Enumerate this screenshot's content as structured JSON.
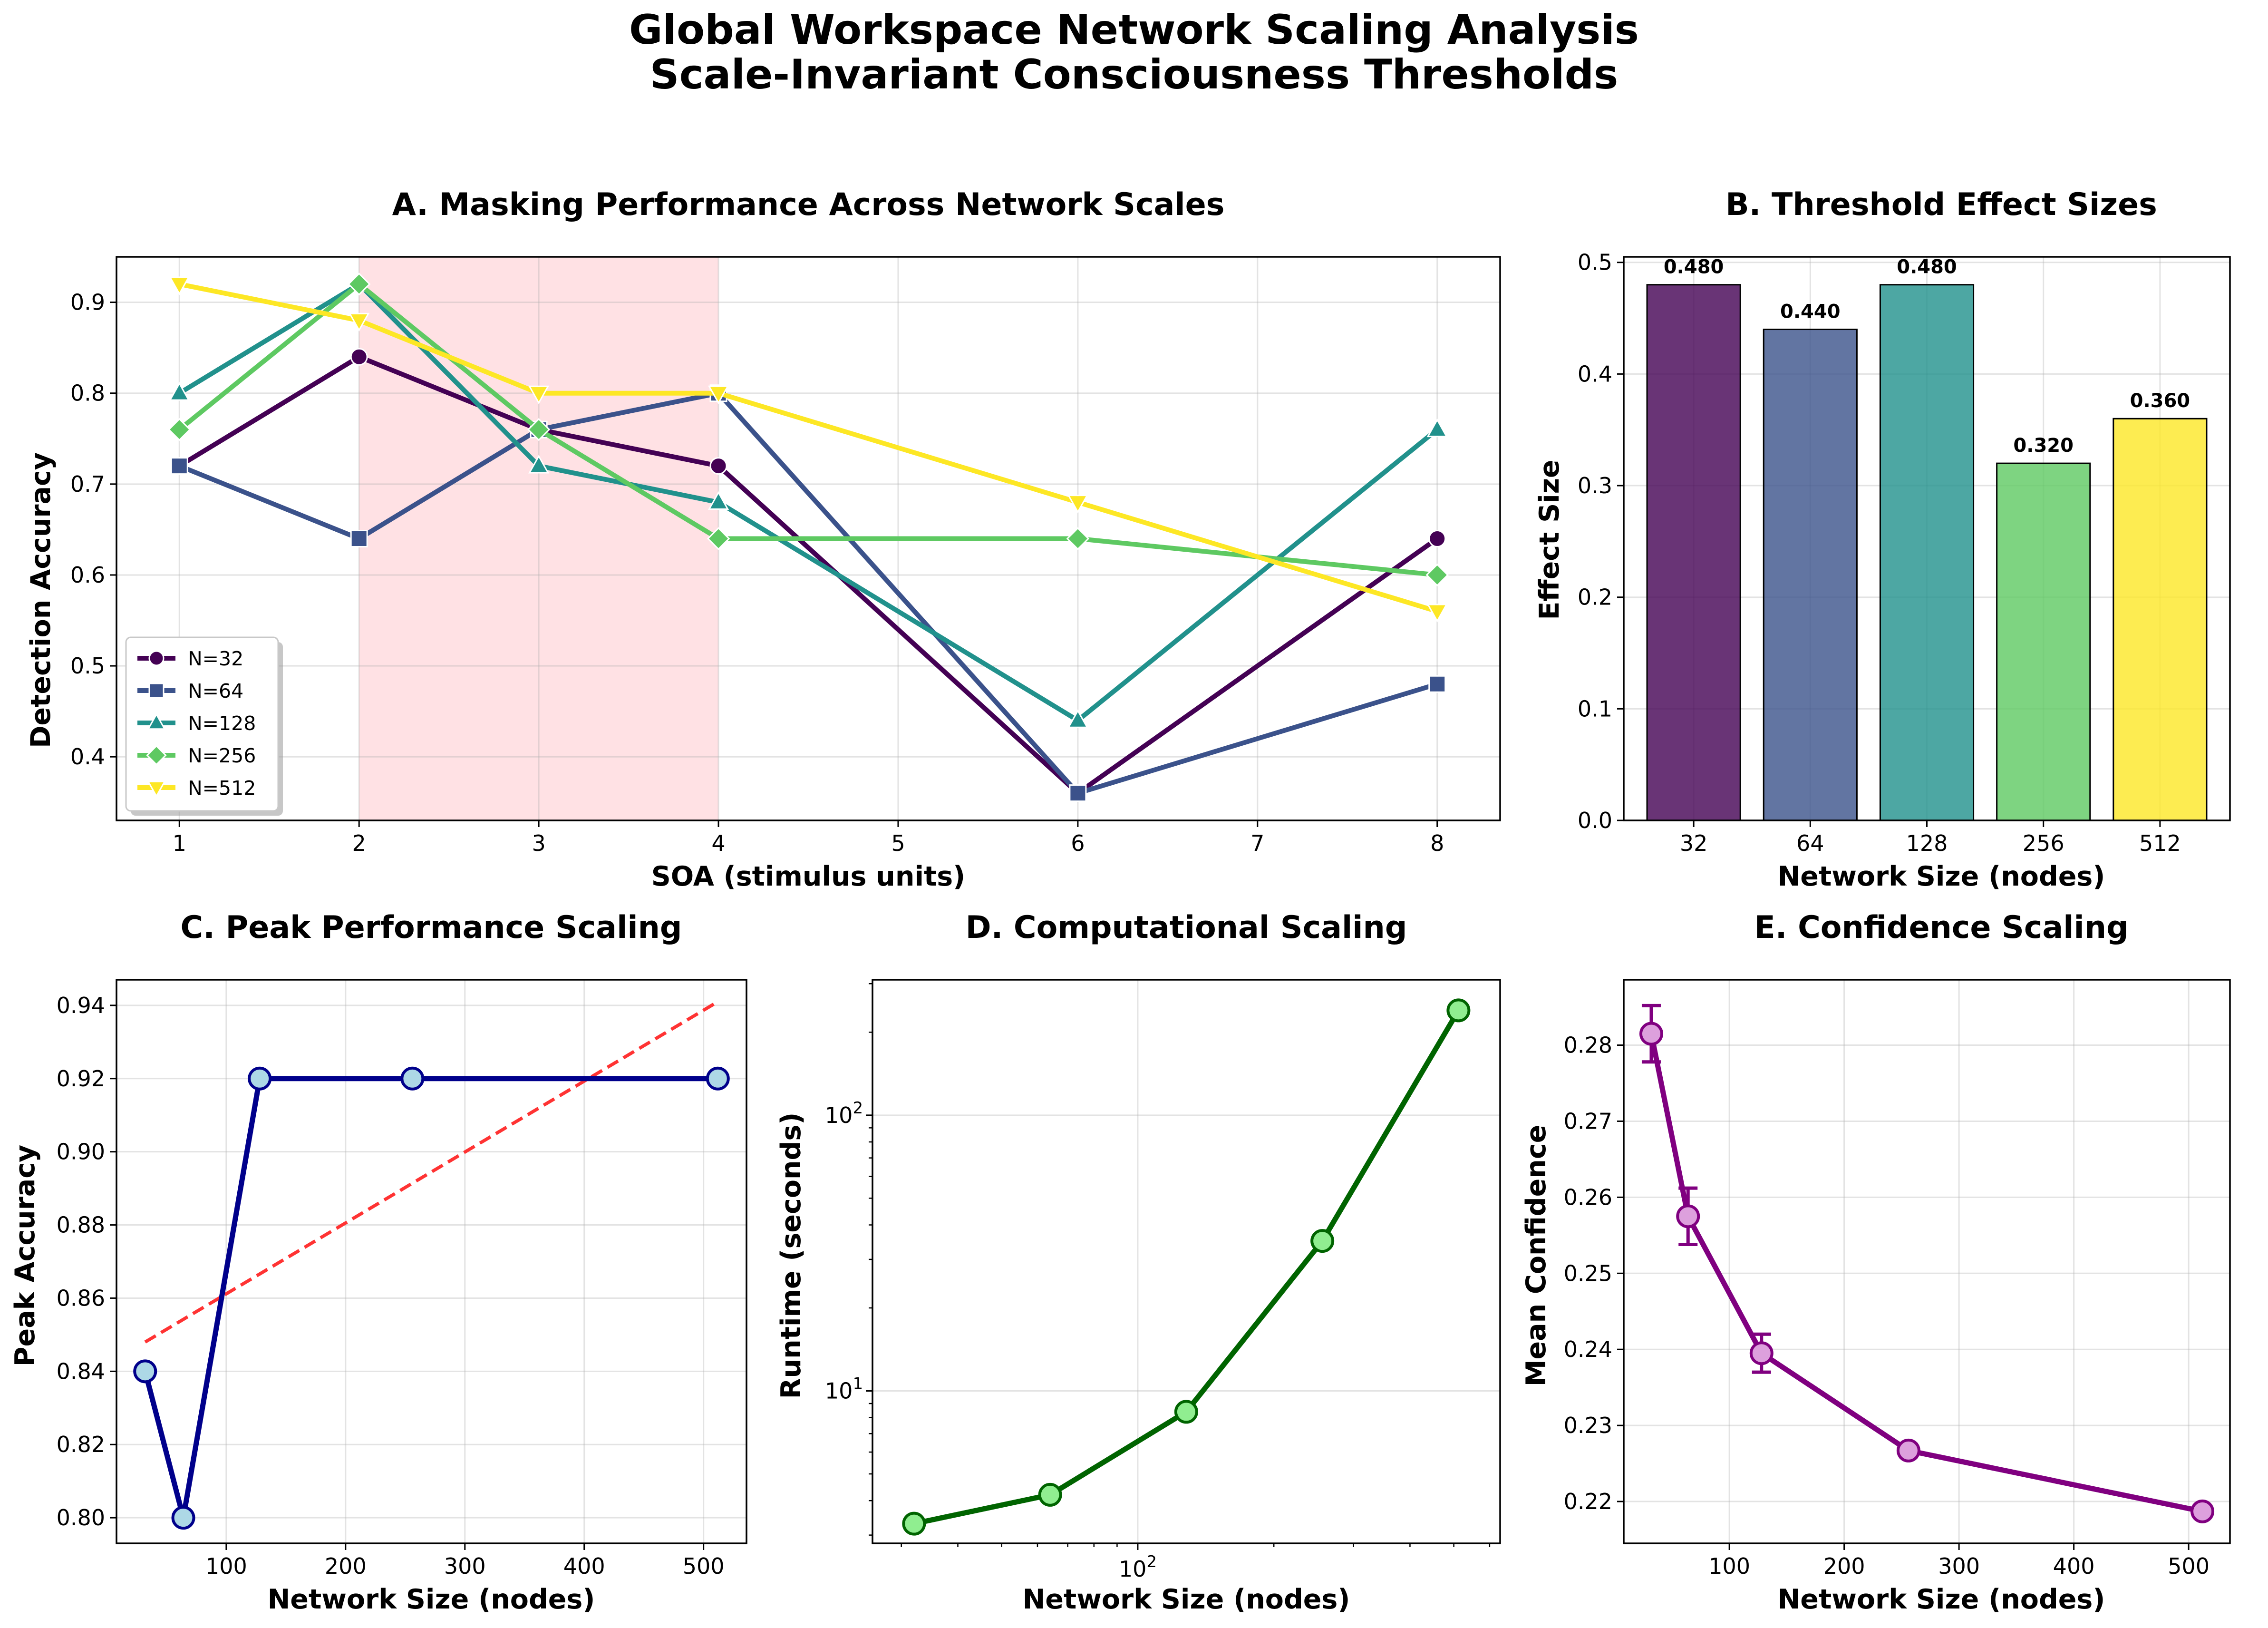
{
  "figure": {
    "title_line1": "Global Workspace Network Scaling Analysis",
    "title_line2": "Scale-Invariant Consciousness Thresholds"
  },
  "chart_data": [
    {
      "id": "A",
      "type": "line",
      "title": "A. Masking Performance Across Network Scales",
      "xlabel": "SOA (stimulus units)",
      "ylabel": "Detection Accuracy",
      "xlim": [
        0.65,
        8.35
      ],
      "ylim": [
        0.33,
        0.95
      ],
      "xticks": [
        1,
        2,
        3,
        4,
        5,
        6,
        7,
        8
      ],
      "yticks": [
        0.4,
        0.5,
        0.6,
        0.7,
        0.8,
        0.9
      ],
      "shaded_region": {
        "x": [
          2,
          4
        ],
        "color": "#ffe1e4"
      },
      "x": [
        1,
        2,
        3,
        4,
        6,
        8
      ],
      "legend_position": "lower left",
      "series": [
        {
          "name": "N=32",
          "color": "#440154",
          "marker": "circle",
          "values": [
            0.72,
            0.84,
            0.76,
            0.72,
            0.36,
            0.64
          ]
        },
        {
          "name": "N=64",
          "color": "#3b528b",
          "marker": "square",
          "values": [
            0.72,
            0.64,
            0.76,
            0.8,
            0.36,
            0.48
          ]
        },
        {
          "name": "N=128",
          "color": "#21918c",
          "marker": "triangle-up",
          "values": [
            0.8,
            0.92,
            0.72,
            0.68,
            0.44,
            0.76
          ]
        },
        {
          "name": "N=256",
          "color": "#5ec962",
          "marker": "diamond",
          "values": [
            0.76,
            0.92,
            0.76,
            0.64,
            0.64,
            0.6
          ]
        },
        {
          "name": "N=512",
          "color": "#fde725",
          "marker": "triangle-down",
          "values": [
            0.92,
            0.88,
            0.8,
            0.8,
            0.68,
            0.56
          ]
        }
      ]
    },
    {
      "id": "B",
      "type": "bar",
      "title": "B. Threshold Effect Sizes",
      "xlabel": "Network Size (nodes)",
      "ylabel": "Effect Size",
      "ylim": [
        0,
        0.505
      ],
      "yticks": [
        0.0,
        0.1,
        0.2,
        0.3,
        0.4,
        0.5
      ],
      "categories": [
        "32",
        "64",
        "128",
        "256",
        "512"
      ],
      "values": [
        0.48,
        0.44,
        0.48,
        0.32,
        0.36
      ],
      "value_labels": [
        "0.480",
        "0.440",
        "0.480",
        "0.320",
        "0.360"
      ],
      "colors": [
        "#440154",
        "#3b528b",
        "#21918c",
        "#5ec962",
        "#fde725"
      ]
    },
    {
      "id": "C",
      "type": "line",
      "title": "C. Peak Performance Scaling",
      "xlabel": "Network Size (nodes)",
      "ylabel": "Peak Accuracy",
      "xlim": [
        8,
        536
      ],
      "ylim": [
        0.793,
        0.947
      ],
      "xticks": [
        100,
        200,
        300,
        400,
        500
      ],
      "yticks": [
        0.8,
        0.82,
        0.84,
        0.86,
        0.88,
        0.9,
        0.92,
        0.94
      ],
      "x": [
        32,
        64,
        128,
        256,
        512
      ],
      "series": [
        {
          "color": "#00008b",
          "marker_fill": "#add8e6",
          "values": [
            0.84,
            0.8,
            0.92,
            0.92,
            0.92
          ]
        }
      ],
      "trend": {
        "color": "#ff3333",
        "x": [
          32,
          512
        ],
        "y": [
          0.848,
          0.941
        ]
      }
    },
    {
      "id": "D",
      "type": "line",
      "title": "D. Computational Scaling",
      "xlabel": "Network Size (nodes)",
      "ylabel": "Runtime (seconds)",
      "xscale": "log",
      "yscale": "log",
      "xlim": [
        25.9,
        633
      ],
      "ylim": [
        2.8,
        310
      ],
      "xticks": [
        100
      ],
      "xtick_labels": [
        "10^2"
      ],
      "yticks": [
        10,
        100
      ],
      "ytick_labels": [
        "10^1",
        "10^2"
      ],
      "x": [
        32,
        64,
        128,
        256,
        512
      ],
      "series": [
        {
          "color": "#006400",
          "marker_fill": "#90ee90",
          "values": [
            3.3,
            4.2,
            8.4,
            35,
            240
          ]
        }
      ]
    },
    {
      "id": "E",
      "type": "line",
      "title": "E. Confidence Scaling",
      "xlabel": "Network Size (nodes)",
      "ylabel": "Mean Confidence",
      "xlim": [
        8,
        536
      ],
      "ylim": [
        0.2145,
        0.2886
      ],
      "xticks": [
        100,
        200,
        300,
        400,
        500
      ],
      "yticks": [
        0.22,
        0.23,
        0.24,
        0.25,
        0.26,
        0.27,
        0.28
      ],
      "x": [
        32,
        64,
        128,
        256,
        512
      ],
      "series": [
        {
          "color": "#800080",
          "marker_fill": "#dda0dd",
          "values": [
            0.2815,
            0.2575,
            0.2395,
            0.2267,
            0.2187
          ],
          "errors": [
            0.0037,
            0.0037,
            0.0025,
            0.0008,
            0.0004
          ]
        }
      ]
    }
  ]
}
